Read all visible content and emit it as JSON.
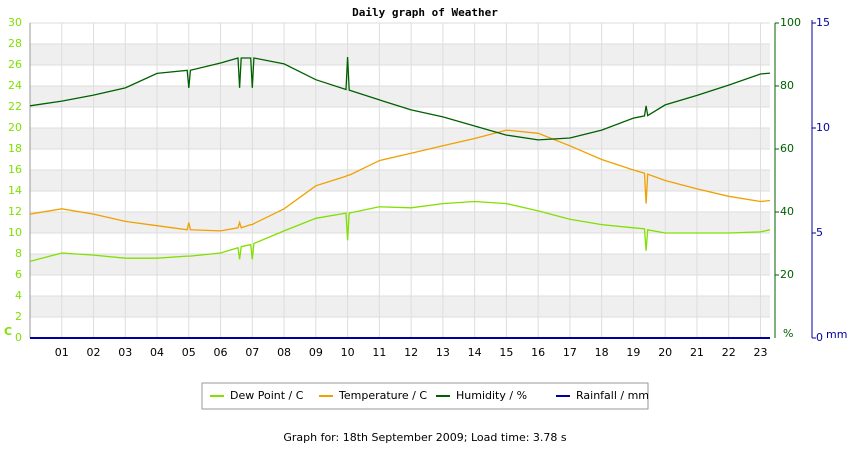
{
  "chart_data": {
    "type": "line",
    "title": "Daily graph of Weather",
    "footer": "Graph for: 18th September 2009; Load time: 3.78 s",
    "grid": true,
    "legend": "bottom",
    "y_unit": "C",
    "y2_unit": "%",
    "y3_unit": "mm",
    "xlim": [
      0,
      23.3
    ],
    "xticks": [
      {
        "value": 1,
        "label": "01"
      },
      {
        "value": 2,
        "label": "02"
      },
      {
        "value": 3,
        "label": "03"
      },
      {
        "value": 4,
        "label": "04"
      },
      {
        "value": 5,
        "label": "05"
      },
      {
        "value": 6,
        "label": "06"
      },
      {
        "value": 7,
        "label": "07"
      },
      {
        "value": 8,
        "label": "08"
      },
      {
        "value": 9,
        "label": "09"
      },
      {
        "value": 10,
        "label": "10"
      },
      {
        "value": 11,
        "label": "11"
      },
      {
        "value": 12,
        "label": "12"
      },
      {
        "value": 13,
        "label": "13"
      },
      {
        "value": 14,
        "label": "14"
      },
      {
        "value": 15,
        "label": "15"
      },
      {
        "value": 16,
        "label": "16"
      },
      {
        "value": 17,
        "label": "17"
      },
      {
        "value": 18,
        "label": "18"
      },
      {
        "value": 19,
        "label": "19"
      },
      {
        "value": 20,
        "label": "20"
      },
      {
        "value": 21,
        "label": "21"
      },
      {
        "value": 22,
        "label": "22"
      },
      {
        "value": 23,
        "label": "23"
      }
    ],
    "ylim": [
      0,
      30
    ],
    "yticks": [
      0,
      2,
      4,
      6,
      8,
      10,
      12,
      14,
      16,
      18,
      20,
      22,
      24,
      26,
      28,
      30
    ],
    "y2lim": [
      0,
      100
    ],
    "y2ticks": [
      20,
      40,
      60,
      80,
      100
    ],
    "y3lim": [
      0,
      15
    ],
    "y3ticks": [
      0,
      5,
      10,
      15
    ],
    "x": [
      0,
      1,
      2,
      3,
      4,
      4.95,
      5,
      5.05,
      6,
      6.55,
      6.6,
      6.65,
      6.95,
      7,
      7.05,
      8,
      9,
      9.95,
      10,
      10.05,
      11,
      12,
      13,
      14,
      15,
      16,
      17,
      18,
      19,
      19.35,
      19.4,
      19.45,
      20,
      21,
      22,
      23,
      23.3
    ],
    "series": [
      {
        "name": "Dew Point / C",
        "color": "#80e000",
        "axis": "y",
        "values": [
          7.3,
          8.1,
          7.9,
          7.6,
          7.6,
          7.8,
          7.8,
          7.8,
          8.1,
          8.6,
          7.5,
          8.7,
          8.9,
          7.5,
          9.0,
          10.2,
          11.4,
          11.9,
          9.3,
          11.9,
          12.5,
          12.4,
          12.8,
          13.0,
          12.8,
          12.1,
          11.3,
          10.8,
          10.5,
          10.4,
          8.3,
          10.3,
          10.0,
          10.0,
          10.0,
          10.1,
          10.3
        ]
      },
      {
        "name": "Temperature / C",
        "color": "#f0a000",
        "axis": "y",
        "values": [
          11.8,
          12.3,
          11.8,
          11.1,
          10.7,
          10.3,
          11.0,
          10.3,
          10.2,
          10.5,
          11.0,
          10.5,
          10.8,
          10.8,
          10.9,
          12.3,
          14.5,
          15.4,
          15.5,
          15.5,
          16.9,
          17.6,
          18.3,
          19.0,
          19.8,
          19.5,
          18.3,
          17.0,
          16.0,
          15.7,
          12.8,
          15.6,
          15.0,
          14.2,
          13.5,
          13.0,
          13.1
        ]
      },
      {
        "name": "Humidity / %",
        "color": "#006000",
        "axis": "y2",
        "values": [
          73.7,
          75.2,
          77.1,
          79.4,
          84.0,
          85.0,
          79.4,
          85.0,
          87.3,
          88.9,
          79.4,
          88.9,
          88.9,
          79.4,
          88.9,
          87.0,
          82.0,
          78.9,
          89.2,
          78.7,
          75.6,
          72.4,
          70.2,
          67.3,
          64.4,
          62.9,
          63.5,
          66.0,
          69.8,
          70.5,
          73.7,
          70.6,
          74.0,
          77.0,
          80.3,
          83.8,
          84.1
        ]
      },
      {
        "name": "Rainfall / mm",
        "color": "#0000a0",
        "axis": "y3",
        "values": [
          0,
          0,
          0,
          0,
          0,
          0,
          0,
          0,
          0,
          0,
          0,
          0,
          0,
          0,
          0,
          0,
          0,
          0,
          0,
          0,
          0,
          0,
          0,
          0,
          0,
          0,
          0,
          0,
          0,
          0,
          0,
          0,
          0,
          0,
          0,
          0,
          0
        ]
      }
    ]
  }
}
